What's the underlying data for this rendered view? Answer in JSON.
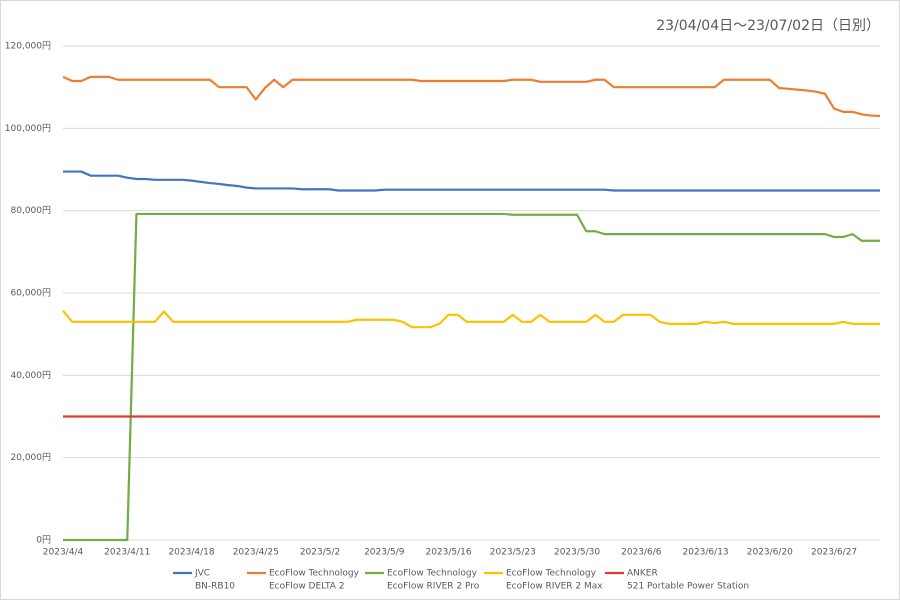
{
  "chart_data": {
    "type": "line",
    "title": "23/04/04日～23/07/02日（日別）",
    "categories": [
      "2023/4/4",
      null,
      null,
      null,
      null,
      null,
      null,
      "2023/4/11",
      null,
      null,
      null,
      null,
      null,
      null,
      "2023/4/18",
      null,
      null,
      null,
      null,
      null,
      null,
      "2023/4/25",
      null,
      null,
      null,
      null,
      null,
      null,
      "2023/5/2",
      null,
      null,
      null,
      null,
      null,
      null,
      "2023/5/9",
      null,
      null,
      null,
      null,
      null,
      null,
      "2023/5/16",
      null,
      null,
      null,
      null,
      null,
      null,
      "2023/5/23",
      null,
      null,
      null,
      null,
      null,
      null,
      "2023/5/30",
      null,
      null,
      null,
      null,
      null,
      null,
      "2023/6/6",
      null,
      null,
      null,
      null,
      null,
      null,
      "2023/6/13",
      null,
      null,
      null,
      null,
      null,
      null,
      "2023/6/20",
      null,
      null,
      null,
      null,
      null,
      null,
      "2023/6/27",
      null,
      null,
      null,
      null,
      null
    ],
    "ylim": [
      0,
      120000
    ],
    "yticks": [
      {
        "value": 0,
        "label": "0円"
      },
      {
        "value": 20000,
        "label": "20,000円"
      },
      {
        "value": 40000,
        "label": "40,000円"
      },
      {
        "value": 60000,
        "label": "60,000円"
      },
      {
        "value": 80000,
        "label": "80,000円"
      },
      {
        "value": 100000,
        "label": "100,000円"
      },
      {
        "value": 120000,
        "label": "120,000円"
      }
    ],
    "grid": true,
    "legend": "bottom",
    "series": [
      {
        "name": "JVC",
        "model": "BN-RB10",
        "color": "#4472c4",
        "values": [
          89500,
          89500,
          89500,
          88500,
          88500,
          88500,
          88500,
          88000,
          87700,
          87700,
          87500,
          87500,
          87500,
          87500,
          87300,
          87000,
          86700,
          86500,
          86200,
          86000,
          85600,
          85400,
          85400,
          85400,
          85400,
          85400,
          85200,
          85200,
          85200,
          85200,
          84900,
          84900,
          84900,
          84900,
          84900,
          85100,
          85100,
          85100,
          85100,
          85100,
          85100,
          85100,
          85100,
          85100,
          85100,
          85100,
          85100,
          85100,
          85100,
          85100,
          85100,
          85100,
          85100,
          85100,
          85100,
          85100,
          85100,
          85100,
          85100,
          85100,
          84900,
          84900,
          84900,
          84900,
          84900,
          84900,
          84900,
          84900,
          84900,
          84900,
          84900,
          84900,
          84900,
          84900,
          84900,
          84900,
          84900,
          84900,
          84900,
          84900,
          84900,
          84900,
          84900,
          84900,
          84900,
          84900,
          84900,
          84900,
          84900,
          84900
        ]
      },
      {
        "name": "EcoFlow Technology",
        "model": "EcoFlow DELTA 2",
        "color": "#ed7d31",
        "values": [
          112500,
          111500,
          111500,
          112500,
          112500,
          112500,
          111800,
          111800,
          111800,
          111800,
          111800,
          111800,
          111800,
          111800,
          111800,
          111800,
          111800,
          110000,
          110000,
          110000,
          110000,
          107000,
          109800,
          111800,
          110000,
          111800,
          111800,
          111800,
          111800,
          111800,
          111800,
          111800,
          111800,
          111800,
          111800,
          111800,
          111800,
          111800,
          111800,
          111500,
          111500,
          111500,
          111500,
          111500,
          111500,
          111500,
          111500,
          111500,
          111500,
          111800,
          111800,
          111800,
          111300,
          111300,
          111300,
          111300,
          111300,
          111300,
          111800,
          111800,
          110000,
          110000,
          110000,
          110000,
          110000,
          110000,
          110000,
          110000,
          110000,
          110000,
          110000,
          110000,
          111800,
          111800,
          111800,
          111800,
          111800,
          111800,
          109800,
          109600,
          109400,
          109200,
          108900,
          108400,
          104800,
          104000,
          104000,
          103400,
          103100,
          103000
        ]
      },
      {
        "name": "EcoFlow Technology",
        "model": "EcoFlow RIVER 2 Pro",
        "color": "#70ad47",
        "values": [
          0,
          0,
          0,
          0,
          0,
          0,
          0,
          0,
          79200,
          79200,
          79200,
          79200,
          79200,
          79200,
          79200,
          79200,
          79200,
          79200,
          79200,
          79200,
          79200,
          79200,
          79200,
          79200,
          79200,
          79200,
          79200,
          79200,
          79200,
          79200,
          79200,
          79200,
          79200,
          79200,
          79200,
          79200,
          79200,
          79200,
          79200,
          79200,
          79200,
          79200,
          79200,
          79200,
          79200,
          79200,
          79200,
          79200,
          79200,
          79000,
          79000,
          79000,
          79000,
          79000,
          79000,
          79000,
          79000,
          75000,
          75000,
          74300,
          74300,
          74300,
          74300,
          74300,
          74300,
          74300,
          74300,
          74300,
          74300,
          74300,
          74300,
          74300,
          74300,
          74300,
          74300,
          74300,
          74300,
          74300,
          74300,
          74300,
          74300,
          74300,
          74300,
          74300,
          73600,
          73600,
          74300,
          72700,
          72700,
          72700
        ]
      },
      {
        "name": "EcoFlow Technology",
        "model": "EcoFlow RIVER 2 Max",
        "color": "#ffc000",
        "values": [
          55700,
          53000,
          53000,
          53000,
          53000,
          53000,
          53000,
          53000,
          53000,
          53000,
          53000,
          55500,
          53000,
          53000,
          53000,
          53000,
          53000,
          53000,
          53000,
          53000,
          53000,
          53000,
          53000,
          53000,
          53000,
          53000,
          53000,
          53000,
          53000,
          53000,
          53000,
          53000,
          53500,
          53500,
          53500,
          53500,
          53500,
          53000,
          51700,
          51700,
          51700,
          52500,
          54700,
          54700,
          53000,
          53000,
          53000,
          53000,
          53000,
          54700,
          53000,
          53000,
          54700,
          53000,
          53000,
          53000,
          53000,
          53000,
          54700,
          53000,
          53000,
          54700,
          54700,
          54700,
          54700,
          53000,
          52500,
          52500,
          52500,
          52500,
          53000,
          52700,
          53000,
          52500,
          52500,
          52500,
          52500,
          52500,
          52500,
          52500,
          52500,
          52500,
          52500,
          52500,
          52500,
          53000,
          52500,
          52500,
          52500,
          52500
        ]
      },
      {
        "name": "ANKER",
        "model": "521 Portable Power Station",
        "color": "#e0392f",
        "values": [
          30000,
          30000,
          30000,
          30000,
          30000,
          30000,
          30000,
          30000,
          30000,
          30000,
          30000,
          30000,
          30000,
          30000,
          30000,
          30000,
          30000,
          30000,
          30000,
          30000,
          30000,
          30000,
          30000,
          30000,
          30000,
          30000,
          30000,
          30000,
          30000,
          30000,
          30000,
          30000,
          30000,
          30000,
          30000,
          30000,
          30000,
          30000,
          30000,
          30000,
          30000,
          30000,
          30000,
          30000,
          30000,
          30000,
          30000,
          30000,
          30000,
          30000,
          30000,
          30000,
          30000,
          30000,
          30000,
          30000,
          30000,
          30000,
          30000,
          30000,
          30000,
          30000,
          30000,
          30000,
          30000,
          30000,
          30000,
          30000,
          30000,
          30000,
          30000,
          30000,
          30000,
          30000,
          30000,
          30000,
          30000,
          30000,
          30000,
          30000,
          30000,
          30000,
          30000,
          30000,
          30000,
          30000,
          30000,
          30000,
          30000,
          30000
        ]
      }
    ]
  }
}
